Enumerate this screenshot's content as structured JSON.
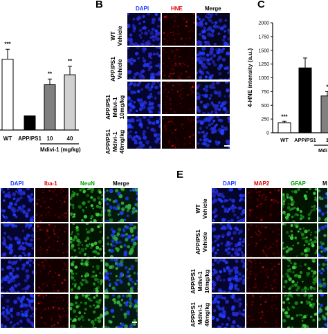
{
  "colors": {
    "dapi": "#1a3cff",
    "red": "#e00000",
    "green": "#00a000",
    "dapi_bg": "#0a0a4a",
    "red_bg": "#1a0000",
    "green_bg": "#001a00"
  },
  "panel_a": {
    "significance": [
      "***",
      "",
      "**",
      "**"
    ],
    "bar_labels": [
      "WT",
      "APP/PS1",
      "10",
      "40"
    ],
    "group_label": "Mdivi-1 (mg/kg)"
  },
  "panel_b": {
    "letter": "B",
    "columns": [
      "DAPI",
      "HNE",
      "Merge"
    ],
    "rows": [
      [
        "WT",
        "Vehicle"
      ],
      [
        "APP/PS1",
        "Vehicle"
      ],
      [
        "APP/PS1",
        "Mdivi-1",
        "10mg/kg"
      ],
      [
        "APP/PS1",
        "Mdivi-1",
        "40mg/kg"
      ]
    ]
  },
  "panel_c": {
    "letter": "C",
    "ylabel": "4-HNE intensity (a.u.)",
    "yticks": [
      "0",
      "250",
      "500",
      "750",
      "1000",
      "1250",
      "1500",
      "1750",
      "2000"
    ],
    "significance": [
      "***",
      "",
      "*"
    ],
    "bar_labels": [
      "WT",
      "APP/PS1",
      "1"
    ],
    "group_label_partial": "Mdi"
  },
  "panel_d": {
    "columns": [
      "DAPI",
      "Iba-1",
      "NeuN",
      "Merge"
    ]
  },
  "panel_e": {
    "letter": "E",
    "columns": [
      "DAPI",
      "MAP2",
      "GFAP",
      "M"
    ],
    "rows": [
      [
        "WT",
        "Vehicle"
      ],
      [
        "APP/PS1",
        "Vehicle"
      ],
      [
        "APP/PS1",
        "Mdivi-1",
        "10mg/kg"
      ],
      [
        "APP/PS1",
        "Mdivi-1",
        "40mg/kg"
      ]
    ]
  },
  "chart_data": [
    {
      "type": "bar",
      "categories": [
        "WT",
        "APP/PS1",
        "10",
        "40"
      ],
      "values": [
        100,
        20,
        64,
        78
      ],
      "significance": [
        "***",
        "",
        "**",
        "**"
      ],
      "xlabel": "Mdivi-1 (mg/kg)",
      "ylabel": "",
      "ylim": [
        0,
        125
      ],
      "bar_colors": [
        "#ffffff",
        "#000000",
        "#808080",
        "#d0d0d0"
      ]
    },
    {
      "type": "bar",
      "categories": [
        "WT",
        "APP/PS1",
        "1"
      ],
      "values": [
        180,
        1180,
        670
      ],
      "significance": [
        "***",
        "",
        "*"
      ],
      "ylabel": "4-HNE intensity (a.u.)",
      "ylim": [
        0,
        2000
      ],
      "bar_colors": [
        "#ffffff",
        "#000000",
        "#808080"
      ]
    }
  ]
}
